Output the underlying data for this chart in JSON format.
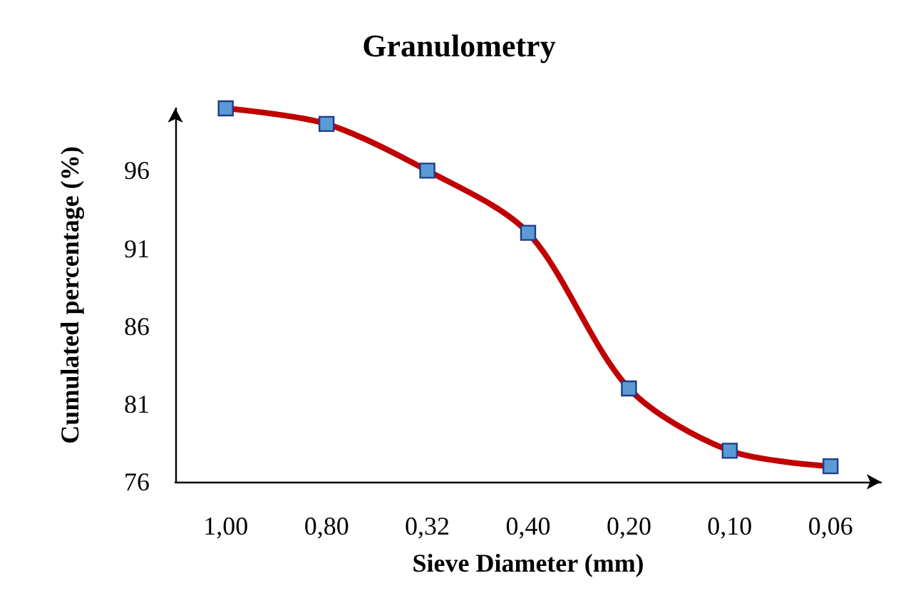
{
  "chart_data": {
    "type": "line",
    "title": "Granulometry",
    "xlabel": "Sieve Diameter (mm)",
    "ylabel": "Cumulated percentage (%)",
    "categories": [
      "1,00",
      "0,80",
      "0,32",
      "0,40",
      "0,20",
      "0,10",
      "0,06"
    ],
    "series": [
      {
        "color": "#c00000",
        "values": [
          100,
          99,
          96,
          92,
          82,
          78,
          77
        ]
      }
    ],
    "ylim": [
      76,
      100
    ],
    "yticks": [
      76,
      81,
      86,
      91,
      96
    ],
    "grid": false,
    "marker": "square",
    "line_style": "solid"
  }
}
